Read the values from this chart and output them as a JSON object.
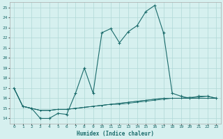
{
  "xlabel": "Humidex (Indice chaleur)",
  "bg_color": "#d6f0ef",
  "grid_color": "#b0d8d6",
  "line_color": "#1a6b6b",
  "xlim": [
    -0.5,
    23.5
  ],
  "ylim": [
    13.5,
    25.5
  ],
  "yticks": [
    14,
    15,
    16,
    17,
    18,
    19,
    20,
    21,
    22,
    23,
    24,
    25
  ],
  "xticks": [
    0,
    1,
    2,
    3,
    4,
    5,
    6,
    7,
    8,
    9,
    10,
    11,
    12,
    13,
    14,
    15,
    16,
    17,
    18,
    19,
    20,
    21,
    22,
    23
  ],
  "series": [
    [
      17.0,
      15.2,
      15.0,
      14.0,
      14.0,
      14.5,
      14.4,
      16.5,
      19.0,
      16.5,
      22.5,
      22.9,
      21.5,
      22.6,
      23.2,
      24.6,
      25.2,
      22.5,
      16.5,
      16.2,
      16.0,
      16.2,
      16.2,
      16.0
    ],
    [
      17.0,
      15.2,
      15.0,
      14.8,
      14.8,
      14.9,
      14.9,
      15.0,
      15.1,
      15.2,
      15.3,
      15.4,
      15.4,
      15.5,
      15.6,
      15.7,
      15.8,
      15.9,
      16.0,
      16.0,
      16.1,
      16.1,
      16.2,
      16.0
    ],
    [
      17.0,
      15.2,
      15.0,
      14.8,
      14.8,
      14.9,
      14.9,
      15.0,
      15.1,
      15.2,
      15.3,
      15.4,
      15.5,
      15.6,
      15.7,
      15.8,
      15.9,
      16.0,
      16.0,
      16.0,
      16.0,
      16.0,
      16.0,
      16.0
    ],
    [
      17.0,
      15.2,
      15.0,
      14.8,
      14.8,
      14.9,
      14.9,
      15.0,
      15.1,
      15.2,
      15.3,
      15.4,
      15.5,
      15.6,
      15.7,
      15.8,
      15.9,
      16.0,
      16.0,
      16.0,
      16.0,
      16.0,
      16.0,
      16.0
    ]
  ]
}
